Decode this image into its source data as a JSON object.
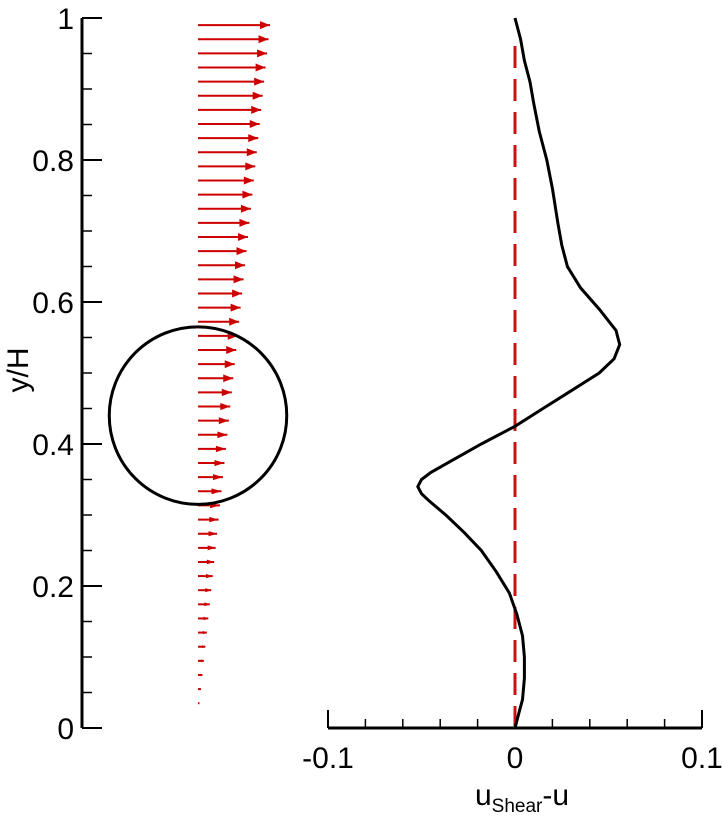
{
  "chart_data": {
    "type": "line",
    "title": "",
    "ylabel": "y/H",
    "xlabel": {
      "base": "u",
      "sub": "Shear",
      "tail": "-u"
    },
    "ylim": [
      0,
      1
    ],
    "xlim": [
      -0.1,
      0.1
    ],
    "y_ticks": [
      0,
      0.2,
      0.4,
      0.6,
      0.8,
      1
    ],
    "y_tick_labels": [
      "0",
      "0.2",
      "0.4",
      "0.6",
      "0.8",
      "1"
    ],
    "y_minor_step": 0.05,
    "x_ticks": [
      -0.1,
      0,
      0.1
    ],
    "x_tick_labels": [
      "-0.1",
      "0",
      "0.1"
    ],
    "x_minor_step": 0.02,
    "reference_line": {
      "x": 0,
      "y_range": [
        0,
        0.97
      ],
      "style": "dashed",
      "color": "#cc1111"
    },
    "series": [
      {
        "type": "line",
        "color": "#000000",
        "x": [
          0,
          0.002,
          0.004,
          0.005,
          0.005,
          0.004,
          0.001,
          -0.003,
          -0.01,
          -0.018,
          -0.027,
          -0.037,
          -0.046,
          -0.05,
          -0.052,
          -0.05,
          -0.045,
          -0.035,
          -0.018,
          0,
          0.015,
          0.03,
          0.045,
          0.053,
          0.056,
          0.054,
          0.045,
          0.035,
          0.028,
          0.025,
          0.023,
          0.02,
          0.017,
          0.013,
          0.01,
          0.008,
          0.005,
          0.003,
          0
        ],
        "y": [
          0,
          0.02,
          0.04,
          0.07,
          0.1,
          0.13,
          0.16,
          0.19,
          0.22,
          0.25,
          0.275,
          0.3,
          0.32,
          0.33,
          0.34,
          0.35,
          0.36,
          0.375,
          0.4,
          0.425,
          0.45,
          0.475,
          0.5,
          0.52,
          0.54,
          0.56,
          0.59,
          0.62,
          0.65,
          0.68,
          0.71,
          0.76,
          0.8,
          0.84,
          0.88,
          0.91,
          0.94,
          0.97,
          1.0
        ]
      }
    ],
    "inset": {
      "velocity_profile": {
        "color": "#cc0000",
        "y_start": 0.015,
        "y_end": 0.99,
        "count": 50,
        "speed_at_bottom": 0.0,
        "speed_at_top": 1.0
      },
      "cylinder": {
        "center_y": 0.44,
        "radius_in_H": 0.125,
        "color": "#000000"
      }
    }
  }
}
